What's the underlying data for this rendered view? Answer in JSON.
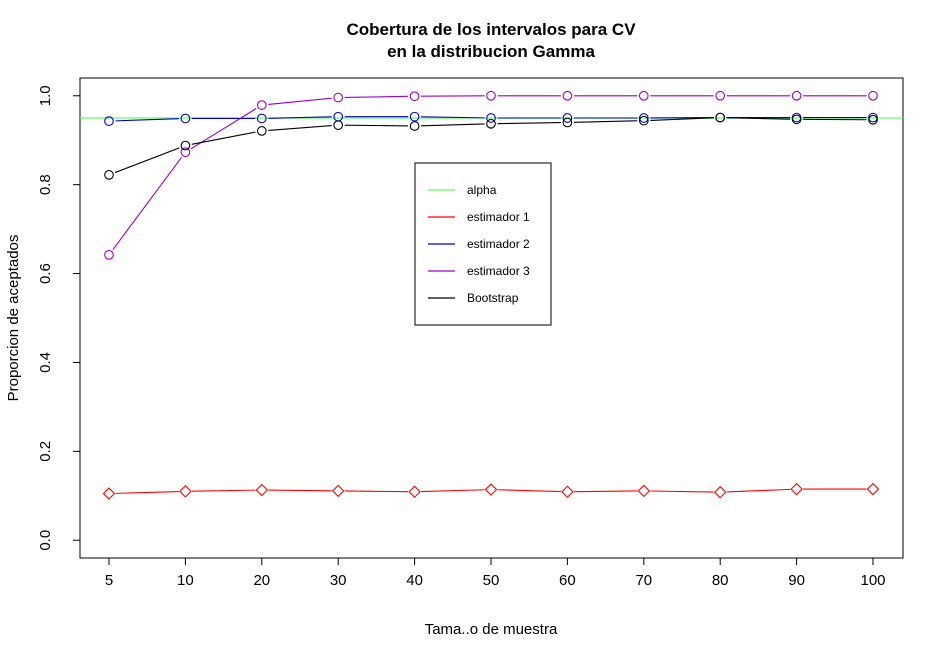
{
  "chart_data": {
    "type": "line",
    "title_line1": "Cobertura de los intervalos para CV",
    "title_line2": "en la distribucion Gamma",
    "xlabel": "Tama..o de muestra",
    "ylabel": "Proporcion de aceptados",
    "categories": [
      "5",
      "10",
      "20",
      "30",
      "40",
      "50",
      "60",
      "70",
      "80",
      "90",
      "100"
    ],
    "y_ticks": [
      "0.0",
      "0.2",
      "0.4",
      "0.6",
      "0.8",
      "1.0"
    ],
    "ylim": [
      -0.04,
      1.04
    ],
    "grid": false,
    "legend_position": "top-center",
    "reference_line": {
      "name": "alpha",
      "value": 0.95,
      "color": "#66ff66"
    },
    "series": [
      {
        "name": "estimador 1",
        "color": "#ff0000",
        "marker": "diamond",
        "values": [
          0.105,
          0.11,
          0.113,
          0.111,
          0.109,
          0.114,
          0.109,
          0.111,
          0.108,
          0.115,
          0.115
        ]
      },
      {
        "name": "estimador 2",
        "color": "#0000cc",
        "marker": "circle",
        "values": [
          0.943,
          0.949,
          0.949,
          0.953,
          0.953,
          0.95,
          0.95,
          0.95,
          0.951,
          0.951,
          0.951
        ]
      },
      {
        "name": "estimador 3",
        "color": "#9900cc",
        "marker": "circle",
        "values": [
          0.642,
          0.873,
          0.979,
          0.996,
          0.999,
          1.0,
          1.0,
          1.0,
          1.0,
          1.0,
          1.0
        ]
      },
      {
        "name": "Bootstrap",
        "color": "#000000",
        "marker": "circle",
        "values": [
          0.822,
          0.888,
          0.921,
          0.934,
          0.932,
          0.937,
          0.94,
          0.944,
          0.951,
          0.947,
          0.946
        ]
      }
    ]
  }
}
